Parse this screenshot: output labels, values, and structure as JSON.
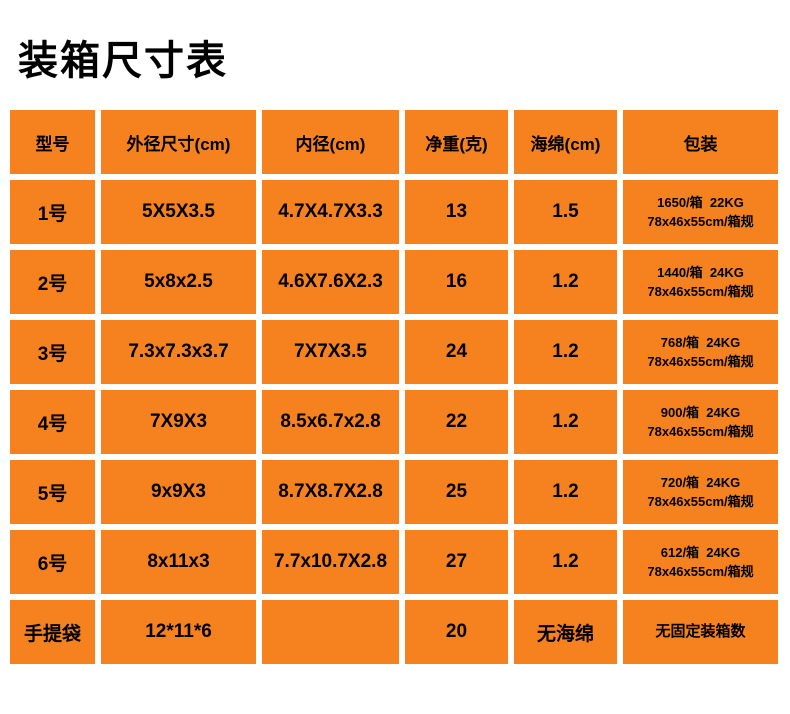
{
  "page": {
    "title": "装箱尺寸表"
  },
  "colors": {
    "cell_background": "#f5821f",
    "text": "#000000",
    "page_background": "#ffffff"
  },
  "table": {
    "headers": [
      "型号",
      "外径尺寸(cm)",
      "内径(cm)",
      "净重(克)",
      "海绵(cm)",
      "包装"
    ],
    "rows": [
      {
        "model": "1号",
        "outer": "5X5X3.5",
        "inner": "4.7X4.7X3.3",
        "weight": "13",
        "sponge": "1.5",
        "pack1": "1650/箱  22KG",
        "pack2": "78x46x55cm/箱规"
      },
      {
        "model": "2号",
        "outer": "5x8x2.5",
        "inner": "4.6X7.6X2.3",
        "weight": "16",
        "sponge": "1.2",
        "pack1": "1440/箱  24KG",
        "pack2": "78x46x55cm/箱规"
      },
      {
        "model": "3号",
        "outer": "7.3x7.3x3.7",
        "inner": "7X7X3.5",
        "weight": "24",
        "sponge": "1.2",
        "pack1": "768/箱  24KG",
        "pack2": "78x46x55cm/箱规"
      },
      {
        "model": "4号",
        "outer": "7X9X3",
        "inner": "8.5x6.7x2.8",
        "weight": "22",
        "sponge": "1.2",
        "pack1": "900/箱  24KG",
        "pack2": "78x46x55cm/箱规"
      },
      {
        "model": "5号",
        "outer": "9x9X3",
        "inner": "8.7X8.7X2.8",
        "weight": "25",
        "sponge": "1.2",
        "pack1": "720/箱  24KG",
        "pack2": "78x46x55cm/箱规"
      },
      {
        "model": "6号",
        "outer": "8x11x3",
        "inner": "7.7x10.7X2.8",
        "weight": "27",
        "sponge": "1.2",
        "pack1": "612/箱  24KG",
        "pack2": "78x46x55cm/箱规"
      },
      {
        "model": "手提袋",
        "outer": "12*11*6",
        "inner": "",
        "weight": "20",
        "sponge": "无海绵",
        "pack1": "无固定装箱数",
        "pack2": ""
      }
    ]
  }
}
